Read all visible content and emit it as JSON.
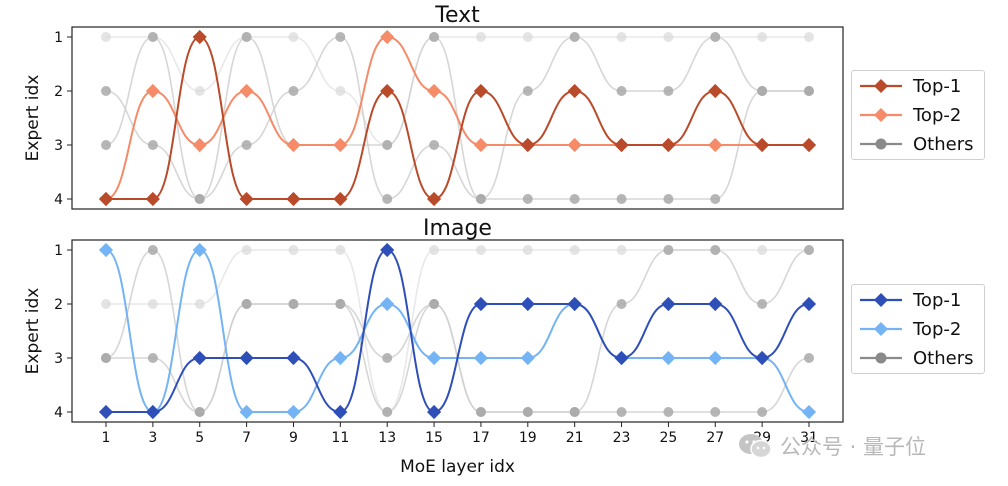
{
  "chart_data": {
    "type": "line",
    "x_axis": {
      "label": "MoE layer idx",
      "ticks": [
        1,
        3,
        5,
        7,
        9,
        11,
        13,
        15,
        17,
        19,
        21,
        23,
        25,
        27,
        29,
        31
      ],
      "range": [
        1,
        31
      ]
    },
    "y_axis": {
      "label": "Expert idx",
      "ticks": [
        1,
        2,
        3,
        4
      ],
      "range": [
        1,
        4
      ],
      "inverted": true
    },
    "legend_placement": "outside-right",
    "panels": [
      {
        "title": "Text",
        "legend": [
          "Top-1",
          "Top-2",
          "Others"
        ],
        "series": [
          {
            "name": "Top-1",
            "color": "#b94a2a",
            "marker": "diamond",
            "x": [
              1,
              3,
              5,
              7,
              9,
              11,
              13,
              15,
              17,
              19,
              21,
              23,
              25,
              27,
              29,
              31
            ],
            "y": [
              4,
              4,
              1,
              4,
              4,
              4,
              2,
              4,
              2,
              3,
              2,
              3,
              3,
              2,
              3,
              3
            ]
          },
          {
            "name": "Top-2",
            "color": "#f58b68",
            "marker": "diamond",
            "x": [
              1,
              3,
              5,
              7,
              9,
              11,
              13,
              15,
              17,
              19,
              21,
              23,
              25,
              27,
              29,
              31
            ],
            "y": [
              4,
              2,
              3,
              2,
              3,
              3,
              1,
              2,
              3,
              3,
              3,
              3,
              3,
              3,
              3,
              3
            ]
          }
        ],
        "others": {
          "name": "Others",
          "color": "#888888",
          "marker": "circle",
          "routes": [
            {
              "y": [
                1,
                1,
                2,
                1,
                1,
                2,
                3,
                1,
                1,
                1,
                1,
                1,
                1,
                1,
                1,
                1
              ]
            },
            {
              "y": [
                2,
                3,
                4,
                3,
                2,
                1,
                4,
                3,
                4,
                2,
                1,
                2,
                2,
                1,
                2,
                2
              ]
            },
            {
              "y": [
                3,
                1,
                4,
                1,
                3,
                3,
                3,
                1,
                4,
                4,
                4,
                4,
                4,
                4,
                2,
                2
              ]
            }
          ]
        }
      },
      {
        "title": "Image",
        "legend": [
          "Top-1",
          "Top-2",
          "Others"
        ],
        "series": [
          {
            "name": "Top-1",
            "color": "#2f4fb8",
            "marker": "diamond",
            "x": [
              1,
              3,
              5,
              7,
              9,
              11,
              13,
              15,
              17,
              19,
              21,
              23,
              25,
              27,
              29,
              31
            ],
            "y": [
              4,
              4,
              3,
              3,
              3,
              4,
              1,
              4,
              2,
              2,
              2,
              3,
              2,
              2,
              3,
              2
            ]
          },
          {
            "name": "Top-2",
            "color": "#74b4f4",
            "marker": "diamond",
            "x": [
              1,
              3,
              5,
              7,
              9,
              11,
              13,
              15,
              17,
              19,
              21,
              23,
              25,
              27,
              29,
              31
            ],
            "y": [
              1,
              4,
              1,
              4,
              4,
              3,
              2,
              3,
              3,
              3,
              2,
              3,
              3,
              3,
              3,
              4
            ]
          }
        ],
        "others": {
          "name": "Others",
          "color": "#888888",
          "marker": "circle",
          "routes": [
            {
              "y": [
                2,
                2,
                2,
                1,
                1,
                1,
                4,
                1,
                1,
                1,
                1,
                1,
                1,
                1,
                1,
                1
              ]
            },
            {
              "y": [
                3,
                3,
                4,
                2,
                2,
                2,
                3,
                2,
                4,
                4,
                4,
                4,
                4,
                4,
                4,
                3
              ]
            },
            {
              "y": [
                3,
                1,
                4,
                2,
                2,
                2,
                4,
                2,
                4,
                4,
                4,
                2,
                1,
                1,
                2,
                1
              ]
            }
          ]
        }
      }
    ]
  },
  "watermark": {
    "text": "公众号 · 量子位",
    "icon": "wechat-icon"
  }
}
